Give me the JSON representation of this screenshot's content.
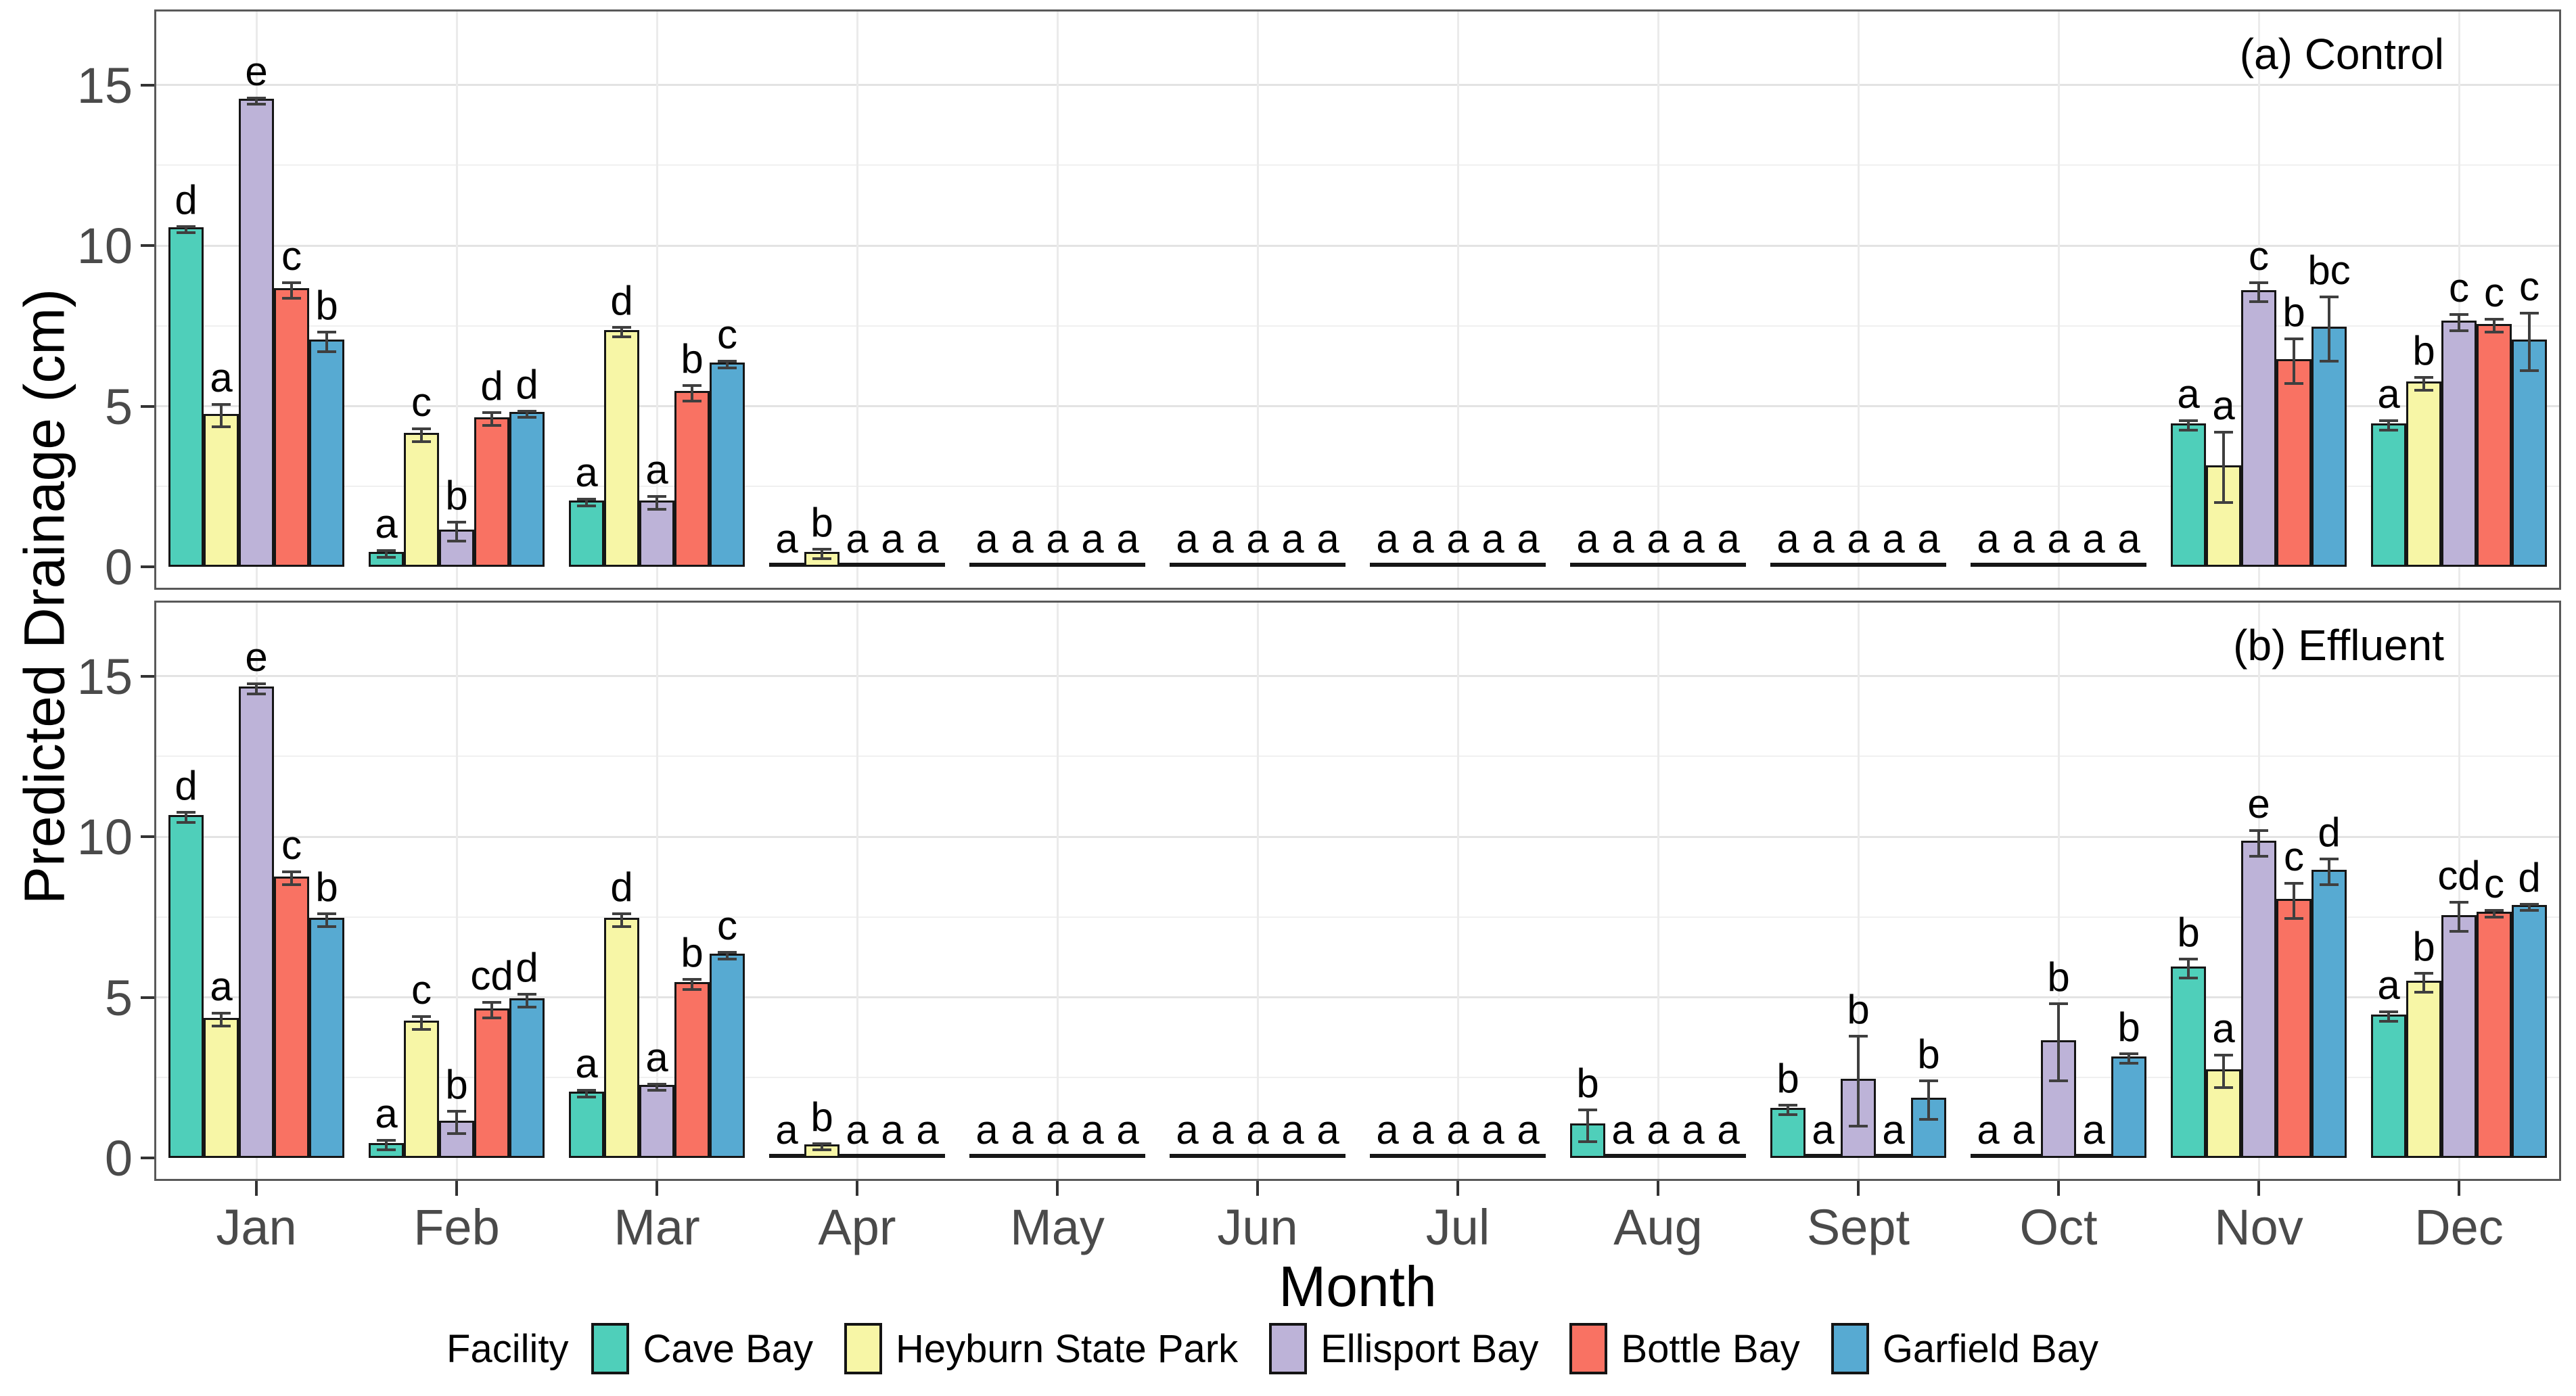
{
  "figure": {
    "ylabel": "Predicted Drainage (cm)",
    "xlabel": "Month"
  },
  "chart_data": {
    "type": "bar",
    "title": "",
    "xlabel": "Month",
    "ylabel": "Predicted Drainage (cm)",
    "ylim": [
      0,
      16.7
    ],
    "yticks": [
      0,
      5,
      10,
      15
    ],
    "grid": "horizontal major+minor, vertical at month centers",
    "legend": {
      "title": "Facility",
      "position": "bottom"
    },
    "categories": [
      "Jan",
      "Feb",
      "Mar",
      "Apr",
      "May",
      "Jun",
      "Jul",
      "Aug",
      "Sept",
      "Oct",
      "Nov",
      "Dec"
    ],
    "series_names": [
      "Cave Bay",
      "Heyburn State Park",
      "Ellisport Bay",
      "Bottle Bay",
      "Garfield Bay"
    ],
    "colors": {
      "Cave Bay": "#4FCFBA",
      "Heyburn State Park": "#F7F6A6",
      "Ellisport Bay": "#BDB3D8",
      "Bottle Bay": "#F97263",
      "Garfield Bay": "#57AAD2"
    },
    "panels": [
      {
        "tag": "(a) Control",
        "series": [
          {
            "name": "Cave Bay",
            "color": "#4FCFBA",
            "values": [
              10.5,
              0.4,
              2.0,
              0.05,
              0.05,
              0.05,
              0.05,
              0.05,
              0.05,
              0.05,
              4.4,
              4.4
            ],
            "errors": [
              0.1,
              0.1,
              0.1,
              0,
              0,
              0,
              0,
              0,
              0,
              0,
              0.15,
              0.15
            ],
            "letters": [
              "d",
              "a",
              "a",
              "a",
              "a",
              "a",
              "a",
              "a",
              "a",
              "a",
              "a",
              "a"
            ]
          },
          {
            "name": "Heyburn State Park",
            "color": "#F7F6A6",
            "values": [
              4.7,
              4.1,
              7.3,
              0.4,
              0.05,
              0.05,
              0.05,
              0.05,
              0.05,
              0.05,
              3.1,
              5.7
            ],
            "errors": [
              0.35,
              0.2,
              0.15,
              0.15,
              0,
              0,
              0,
              0,
              0,
              0,
              1.1,
              0.2
            ],
            "letters": [
              "a",
              "c",
              "d",
              "b",
              "a",
              "a",
              "a",
              "a",
              "a",
              "a",
              "a",
              "b"
            ]
          },
          {
            "name": "Ellisport Bay",
            "color": "#BDB3D8",
            "values": [
              14.5,
              1.1,
              2.0,
              0.05,
              0.05,
              0.05,
              0.05,
              0.05,
              0.05,
              0.05,
              8.55,
              7.6
            ],
            "errors": [
              0.1,
              0.3,
              0.2,
              0,
              0,
              0,
              0,
              0,
              0,
              0,
              0.3,
              0.25
            ],
            "letters": [
              "e",
              "b",
              "a",
              "a",
              "a",
              "a",
              "a",
              "a",
              "a",
              "a",
              "c",
              "c"
            ]
          },
          {
            "name": "Bottle Bay",
            "color": "#F97263",
            "values": [
              8.6,
              4.6,
              5.4,
              0.05,
              0.05,
              0.05,
              0.05,
              0.05,
              0.05,
              0.05,
              6.4,
              7.5
            ],
            "errors": [
              0.25,
              0.2,
              0.25,
              0,
              0,
              0,
              0,
              0,
              0,
              0,
              0.7,
              0.2
            ],
            "letters": [
              "c",
              "d",
              "b",
              "a",
              "a",
              "a",
              "a",
              "a",
              "a",
              "a",
              "b",
              "c"
            ]
          },
          {
            "name": "Garfield Bay",
            "color": "#57AAD2",
            "values": [
              7.0,
              4.75,
              6.3,
              0.05,
              0.05,
              0.05,
              0.05,
              0.05,
              0.05,
              0.05,
              7.4,
              7.0
            ],
            "errors": [
              0.3,
              0.1,
              0.1,
              0,
              0,
              0,
              0,
              0,
              0,
              0,
              1.0,
              0.9
            ],
            "letters": [
              "b",
              "d",
              "c",
              "a",
              "a",
              "a",
              "a",
              "a",
              "a",
              "a",
              "bc",
              "c"
            ]
          }
        ]
      },
      {
        "tag": "(b) Effluent",
        "series": [
          {
            "name": "Cave Bay",
            "color": "#4FCFBA",
            "values": [
              10.6,
              0.4,
              2.0,
              0.05,
              0.05,
              0.05,
              0.05,
              1.0,
              1.5,
              0.05,
              5.9,
              4.4
            ],
            "errors": [
              0.15,
              0.15,
              0.1,
              0,
              0,
              0,
              0,
              0.5,
              0.15,
              0,
              0.3,
              0.15
            ],
            "letters": [
              "d",
              "a",
              "a",
              "a",
              "a",
              "a",
              "a",
              "b",
              "b",
              "a",
              "b",
              "a"
            ]
          },
          {
            "name": "Heyburn State Park",
            "color": "#F7F6A6",
            "values": [
              4.3,
              4.2,
              7.4,
              0.35,
              0.05,
              0.05,
              0.05,
              0.05,
              0.05,
              0.05,
              2.7,
              5.45
            ],
            "errors": [
              0.2,
              0.2,
              0.2,
              0.1,
              0,
              0,
              0,
              0,
              0,
              0,
              0.5,
              0.3
            ],
            "letters": [
              "a",
              "c",
              "d",
              "b",
              "a",
              "a",
              "a",
              "a",
              "a",
              "a",
              "a",
              "b"
            ]
          },
          {
            "name": "Ellisport Bay",
            "color": "#BDB3D8",
            "values": [
              14.6,
              1.1,
              2.2,
              0.05,
              0.05,
              0.05,
              0.05,
              0.05,
              2.4,
              3.6,
              9.8,
              7.5
            ],
            "errors": [
              0.15,
              0.35,
              0.1,
              0,
              0,
              0,
              0,
              0,
              1.4,
              1.2,
              0.4,
              0.45
            ],
            "letters": [
              "e",
              "b",
              "a",
              "a",
              "a",
              "a",
              "a",
              "a",
              "b",
              "b",
              "e",
              "cd"
            ]
          },
          {
            "name": "Bottle Bay",
            "color": "#F97263",
            "values": [
              8.7,
              4.6,
              5.4,
              0.05,
              0.05,
              0.05,
              0.05,
              0.05,
              0.05,
              0.05,
              8.0,
              7.6
            ],
            "errors": [
              0.2,
              0.25,
              0.15,
              0,
              0,
              0,
              0,
              0,
              0,
              0,
              0.55,
              0.1
            ],
            "letters": [
              "c",
              "cd",
              "b",
              "a",
              "a",
              "a",
              "a",
              "a",
              "a",
              "a",
              "c",
              "c"
            ]
          },
          {
            "name": "Garfield Bay",
            "color": "#57AAD2",
            "values": [
              7.4,
              4.9,
              6.3,
              0.05,
              0.05,
              0.05,
              0.05,
              0.05,
              1.8,
              3.1,
              8.9,
              7.8
            ],
            "errors": [
              0.2,
              0.2,
              0.1,
              0,
              0,
              0,
              0,
              0,
              0.6,
              0.15,
              0.4,
              0.1
            ],
            "letters": [
              "b",
              "d",
              "c",
              "a",
              "a",
              "a",
              "a",
              "a",
              "b",
              "b",
              "d",
              "d"
            ]
          }
        ]
      }
    ]
  }
}
